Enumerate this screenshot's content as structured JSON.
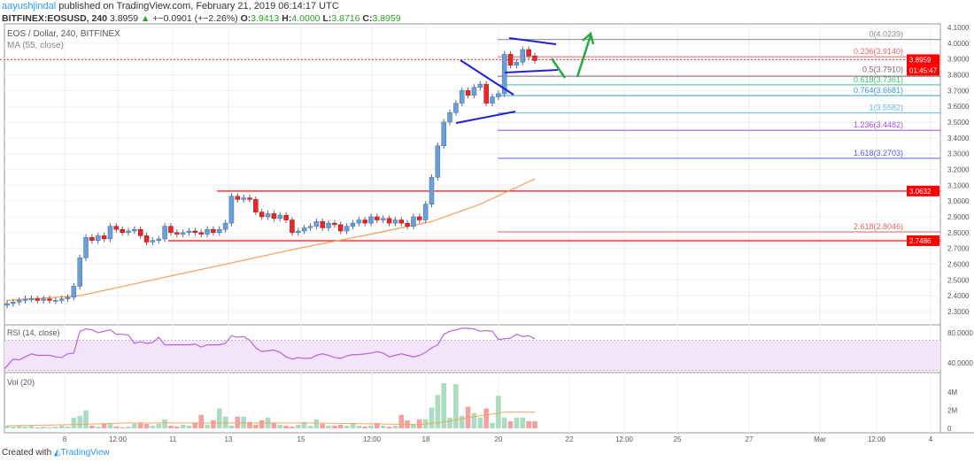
{
  "header": {
    "author": "aayushjindal",
    "published": " published on TradingView.com, February 21, 2019 06:14:17 UTC",
    "symbol": "BITFINEX:EOSUSD, 240",
    "last": "3.8959",
    "change": "+−0.0901 (+−2.26%)",
    "o_label": "O:",
    "o": "3.9413",
    "h_label": "H:",
    "h": "4.0000",
    "l_label": "L:",
    "l": "3.8716",
    "c_label": "C:",
    "c": "3.8959"
  },
  "legend": {
    "title": "EOS / Dollar, 240, BITFINEX",
    "ma": "MA (55, close)",
    "rsi": "RSI (14, close)",
    "vol": "Vol (20)"
  },
  "footer": {
    "created": "Created with",
    "brand": "TradingView"
  },
  "colors": {
    "up": "#6a9fd8",
    "down": "#e8272b",
    "ma": "#f4a460",
    "rsi": "#b565d6",
    "vol_up": "#a9dcc0",
    "vol_down": "#f3a0a0",
    "level": "#ff3333",
    "trend": "#1f1fe0",
    "arrow": "#22aa44"
  },
  "chart_data": [
    {
      "type": "candlestick",
      "title": "EOS / Dollar, 240, BITFINEX",
      "ylim": [
        2.25,
        4.12
      ],
      "y_ticks": [
        "4.1000",
        "4.0000",
        "3.9000",
        "3.8000",
        "3.7000",
        "3.6000",
        "3.5000",
        "3.4000",
        "3.3000",
        "3.2000",
        "3.1000",
        "3.0000",
        "2.9000",
        "2.8000",
        "2.7000",
        "2.6000",
        "2.5000",
        "2.4000",
        "2.3000"
      ],
      "x_ticks": [
        "8",
        "12:00",
        "11",
        "13",
        "15",
        "12:00",
        "18",
        "20",
        "22",
        "12:00",
        "25",
        "27",
        "Mar",
        "12:00",
        "4"
      ],
      "open_first": 2.34,
      "close": [
        2.35,
        2.36,
        2.37,
        2.38,
        2.38,
        2.37,
        2.38,
        2.37,
        2.37,
        2.38,
        2.39,
        2.46,
        2.64,
        2.77,
        2.75,
        2.78,
        2.76,
        2.84,
        2.82,
        2.8,
        2.81,
        2.82,
        2.78,
        2.74,
        2.75,
        2.76,
        2.84,
        2.8,
        2.79,
        2.8,
        2.81,
        2.8,
        2.79,
        2.82,
        2.8,
        2.82,
        2.86,
        3.03,
        3.01,
        3.02,
        3.01,
        2.93,
        2.9,
        2.92,
        2.89,
        2.91,
        2.88,
        2.8,
        2.81,
        2.83,
        2.84,
        2.87,
        2.83,
        2.86,
        2.85,
        2.81,
        2.84,
        2.86,
        2.88,
        2.86,
        2.9,
        2.88,
        2.89,
        2.86,
        2.88,
        2.86,
        2.84,
        2.9,
        2.88,
        2.98,
        3.15,
        3.35,
        3.5,
        3.56,
        3.62,
        3.7,
        3.67,
        3.72,
        3.74,
        3.62,
        3.66,
        3.68,
        3.93,
        3.86,
        3.88,
        3.96,
        3.92,
        3.89
      ],
      "ma55": [
        [
          0,
          2.37
        ],
        [
          12,
          2.4
        ],
        [
          24,
          2.5
        ],
        [
          36,
          2.6
        ],
        [
          48,
          2.7
        ],
        [
          60,
          2.79
        ],
        [
          70,
          2.87
        ],
        [
          78,
          2.98
        ],
        [
          87,
          3.14
        ]
      ],
      "price_badges": [
        {
          "value": "3.8959",
          "price": 3.8959
        },
        {
          "value": "01:45:47"
        },
        {
          "value": "3.0632",
          "price": 3.0632
        },
        {
          "value": "2.7486",
          "price": 2.7486
        }
      ],
      "fib_levels": [
        {
          "label": "0(4.0239)",
          "price": 4.0239,
          "color": "#888888"
        },
        {
          "label": "0.236(3.9140)",
          "price": 3.914,
          "color": "#e06666"
        },
        {
          "label": "0.5(3.7910)",
          "price": 3.791,
          "color": "#7a5a70"
        },
        {
          "label": "0.618(3.7361)",
          "price": 3.7361,
          "color": "#3cbf7f"
        },
        {
          "label": "0.764(3.6681)",
          "price": 3.6681,
          "color": "#3a9ad9"
        },
        {
          "label": "1(3.5582)",
          "price": 3.5582,
          "color": "#6ab8e0"
        },
        {
          "label": "1.236(3.4482)",
          "price": 3.4482,
          "color": "#a04fd0"
        },
        {
          "label": "1.618(3.2703)",
          "price": 3.2703,
          "color": "#5a5ae0"
        },
        {
          "label": "2.618(2.8046)",
          "price": 2.8046,
          "color": "#e06666"
        }
      ],
      "horizontal_levels": [
        3.0632,
        2.7486
      ]
    },
    {
      "type": "line",
      "title": "RSI (14, close)",
      "y_ticks": [
        "80.0000",
        "40.0000"
      ],
      "bands": [
        30,
        70
      ],
      "values": [
        32,
        45,
        44,
        48,
        52,
        50,
        50,
        50,
        48,
        47,
        52,
        53,
        82,
        85,
        84,
        80,
        82,
        84,
        78,
        78,
        77,
        66,
        68,
        66,
        67,
        74,
        64,
        64,
        64,
        64,
        64,
        65,
        61,
        64,
        64,
        64,
        66,
        76,
        74,
        75,
        70,
        60,
        55,
        56,
        57,
        54,
        48,
        45,
        47,
        46,
        46,
        50,
        52,
        50,
        47,
        46,
        49,
        51,
        51,
        52,
        53,
        55,
        53,
        48,
        50,
        52,
        50,
        48,
        50,
        54,
        60,
        64,
        78,
        82,
        84,
        86,
        86,
        85,
        82,
        83,
        82,
        71,
        72,
        73,
        78,
        75,
        76,
        72
      ]
    },
    {
      "type": "bar",
      "title": "Vol (20)",
      "y_ticks": [
        "4M",
        "2M",
        "0"
      ],
      "values": [
        0.3,
        0.2,
        0.3,
        0.2,
        0.3,
        0.1,
        0.2,
        0.1,
        0.2,
        0.3,
        0.2,
        1.2,
        1.4,
        2.0,
        0.3,
        0.2,
        0.5,
        0.6,
        0.2,
        0.1,
        0.2,
        0.5,
        0.6,
        0.5,
        0.3,
        0.5,
        1.0,
        0.3,
        0.2,
        0.4,
        0.3,
        0.6,
        1.5,
        0.4,
        0.9,
        2.2,
        1.3,
        0.3,
        1.3,
        1.3,
        0.7,
        0.4,
        0.9,
        1.2,
        0.6,
        0.4,
        0.3,
        0.2,
        0.4,
        0.7,
        0.3,
        1.0,
        0.5,
        0.3,
        0.3,
        0.4,
        0.3,
        0.6,
        0.3,
        0.2,
        0.3,
        0.6,
        0.3,
        0.2,
        0.3,
        1.5,
        0.9,
        0.5,
        1.0,
        1.0,
        2.3,
        3.7,
        5.0,
        1.2,
        4.9,
        1.4,
        2.4,
        1.7,
        1.2,
        2.2,
        0.6,
        3.6,
        1.2,
        0.8,
        1.2,
        1.2,
        0.8,
        0.8
      ],
      "ma20": [
        [
          0,
          0.3
        ],
        [
          10,
          0.4
        ],
        [
          20,
          0.6
        ],
        [
          30,
          0.6
        ],
        [
          40,
          0.6
        ],
        [
          50,
          0.6
        ],
        [
          60,
          0.5
        ],
        [
          68,
          0.4
        ],
        [
          72,
          0.7
        ],
        [
          78,
          1.4
        ],
        [
          82,
          1.8
        ],
        [
          87,
          1.8
        ]
      ]
    }
  ]
}
